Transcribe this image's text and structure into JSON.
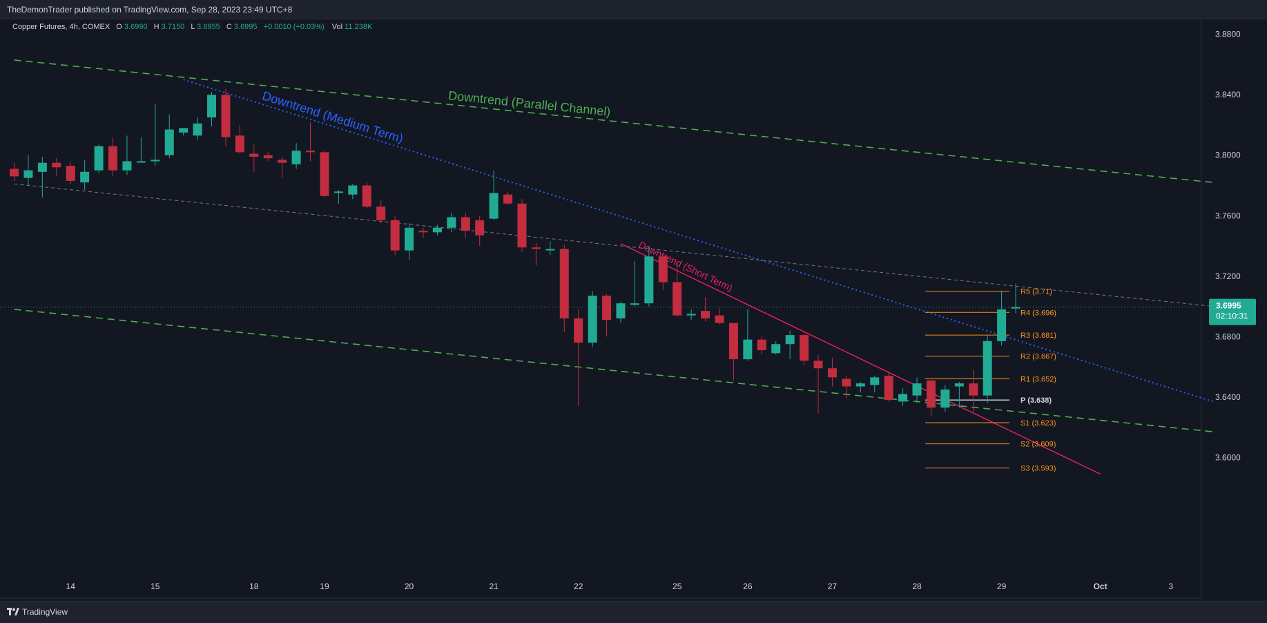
{
  "header": {
    "published": "TheDemonTrader published on TradingView.com, Sep 28, 2023 23:49 UTC+8"
  },
  "legend": {
    "symbol": "Copper Futures, 4h, COMEX",
    "o_label": "O",
    "o_value": "3.6990",
    "h_label": "H",
    "h_value": "3.7150",
    "l_label": "L",
    "l_value": "3.6955",
    "c_label": "C",
    "c_value": "3.6995",
    "change": "+0.0010 (+0.03%)",
    "vol_label": "Vol",
    "vol_value": "11.238K"
  },
  "price_badge": {
    "price": "3.6995",
    "countdown": "02:10:31"
  },
  "footer": {
    "brand": "TradingView"
  },
  "colors": {
    "background": "#131722",
    "panel": "#1e222d",
    "bull": "#22ab94",
    "bear": "#c22d3f",
    "pivot_levels": "#f7931a",
    "pivot_p": "#d1d4dc",
    "channel": "#4caf50",
    "medium_trend": "#2962ff",
    "short_trend": "#e91e63",
    "axis_text": "#d1d4dc"
  },
  "chart_data": {
    "type": "candlestick",
    "symbol": "Copper Futures, 4h, COMEX",
    "ylim": [
      3.585,
      3.885
    ],
    "xlim": [
      0,
      86
    ],
    "yticks": [
      "3.8800",
      "3.8400",
      "3.8000",
      "3.7600",
      "3.7200",
      "3.6800",
      "3.6400",
      "3.6000"
    ],
    "ytick_values": [
      3.88,
      3.84,
      3.8,
      3.76,
      3.72,
      3.68,
      3.64,
      3.6
    ],
    "xticks": [
      {
        "label": "14",
        "bar": 4,
        "bold": false
      },
      {
        "label": "15",
        "bar": 10,
        "bold": false
      },
      {
        "label": "18",
        "bar": 17,
        "bold": false
      },
      {
        "label": "19",
        "bar": 22,
        "bold": false
      },
      {
        "label": "20",
        "bar": 28,
        "bold": false
      },
      {
        "label": "21",
        "bar": 34,
        "bold": false
      },
      {
        "label": "22",
        "bar": 40,
        "bold": false
      },
      {
        "label": "25",
        "bar": 47,
        "bold": false
      },
      {
        "label": "26",
        "bar": 52,
        "bold": false
      },
      {
        "label": "27",
        "bar": 58,
        "bold": false
      },
      {
        "label": "28",
        "bar": 64,
        "bold": false
      },
      {
        "label": "29",
        "bar": 70,
        "bold": false
      },
      {
        "label": "Oct",
        "bar": 77,
        "bold": true
      },
      {
        "label": "3",
        "bar": 82,
        "bold": false
      }
    ],
    "candles": [
      {
        "o": 3.791,
        "h": 3.795,
        "l": 3.783,
        "c": 3.786
      },
      {
        "o": 3.785,
        "h": 3.8,
        "l": 3.78,
        "c": 3.79
      },
      {
        "o": 3.789,
        "h": 3.799,
        "l": 3.772,
        "c": 3.795
      },
      {
        "o": 3.795,
        "h": 3.798,
        "l": 3.786,
        "c": 3.792
      },
      {
        "o": 3.793,
        "h": 3.796,
        "l": 3.781,
        "c": 3.783
      },
      {
        "o": 3.782,
        "h": 3.797,
        "l": 3.777,
        "c": 3.789
      },
      {
        "o": 3.79,
        "h": 3.807,
        "l": 3.788,
        "c": 3.806
      },
      {
        "o": 3.806,
        "h": 3.812,
        "l": 3.786,
        "c": 3.79
      },
      {
        "o": 3.79,
        "h": 3.813,
        "l": 3.787,
        "c": 3.796
      },
      {
        "o": 3.796,
        "h": 3.812,
        "l": 3.795,
        "c": 3.796
      },
      {
        "o": 3.796,
        "h": 3.834,
        "l": 3.793,
        "c": 3.797
      },
      {
        "o": 3.8,
        "h": 3.827,
        "l": 3.798,
        "c": 3.817
      },
      {
        "o": 3.815,
        "h": 3.818,
        "l": 3.813,
        "c": 3.818
      },
      {
        "o": 3.813,
        "h": 3.825,
        "l": 3.81,
        "c": 3.821
      },
      {
        "o": 3.825,
        "h": 3.842,
        "l": 3.819,
        "c": 3.84
      },
      {
        "o": 3.84,
        "h": 3.844,
        "l": 3.806,
        "c": 3.812
      },
      {
        "o": 3.813,
        "h": 3.82,
        "l": 3.801,
        "c": 3.802
      },
      {
        "o": 3.801,
        "h": 3.807,
        "l": 3.789,
        "c": 3.799
      },
      {
        "o": 3.8,
        "h": 3.802,
        "l": 3.796,
        "c": 3.798
      },
      {
        "o": 3.797,
        "h": 3.799,
        "l": 3.785,
        "c": 3.795
      },
      {
        "o": 3.794,
        "h": 3.808,
        "l": 3.791,
        "c": 3.803
      },
      {
        "o": 3.803,
        "h": 3.822,
        "l": 3.796,
        "c": 3.802
      },
      {
        "o": 3.802,
        "h": 3.803,
        "l": 3.772,
        "c": 3.773
      },
      {
        "o": 3.776,
        "h": 3.777,
        "l": 3.768,
        "c": 3.776
      },
      {
        "o": 3.774,
        "h": 3.781,
        "l": 3.771,
        "c": 3.78
      },
      {
        "o": 3.78,
        "h": 3.782,
        "l": 3.765,
        "c": 3.766
      },
      {
        "o": 3.766,
        "h": 3.77,
        "l": 3.755,
        "c": 3.757
      },
      {
        "o": 3.757,
        "h": 3.76,
        "l": 3.734,
        "c": 3.737
      },
      {
        "o": 3.737,
        "h": 3.755,
        "l": 3.731,
        "c": 3.752
      },
      {
        "o": 3.75,
        "h": 3.752,
        "l": 3.745,
        "c": 3.749
      },
      {
        "o": 3.749,
        "h": 3.754,
        "l": 3.747,
        "c": 3.752
      },
      {
        "o": 3.752,
        "h": 3.762,
        "l": 3.749,
        "c": 3.759
      },
      {
        "o": 3.759,
        "h": 3.762,
        "l": 3.745,
        "c": 3.75
      },
      {
        "o": 3.757,
        "h": 3.76,
        "l": 3.74,
        "c": 3.747
      },
      {
        "o": 3.758,
        "h": 3.79,
        "l": 3.757,
        "c": 3.775
      },
      {
        "o": 3.774,
        "h": 3.776,
        "l": 3.767,
        "c": 3.768
      },
      {
        "o": 3.768,
        "h": 3.771,
        "l": 3.736,
        "c": 3.739
      },
      {
        "o": 3.739,
        "h": 3.742,
        "l": 3.727,
        "c": 3.738
      },
      {
        "o": 3.737,
        "h": 3.743,
        "l": 3.734,
        "c": 3.738
      },
      {
        "o": 3.738,
        "h": 3.741,
        "l": 3.683,
        "c": 3.692
      },
      {
        "o": 3.692,
        "h": 3.698,
        "l": 3.634,
        "c": 3.676
      },
      {
        "o": 3.676,
        "h": 3.71,
        "l": 3.673,
        "c": 3.707
      },
      {
        "o": 3.707,
        "h": 3.708,
        "l": 3.68,
        "c": 3.691
      },
      {
        "o": 3.692,
        "h": 3.703,
        "l": 3.689,
        "c": 3.702
      },
      {
        "o": 3.701,
        "h": 3.73,
        "l": 3.7,
        "c": 3.702
      },
      {
        "o": 3.702,
        "h": 3.74,
        "l": 3.7,
        "c": 3.733
      },
      {
        "o": 3.733,
        "h": 3.735,
        "l": 3.711,
        "c": 3.716
      },
      {
        "o": 3.716,
        "h": 3.729,
        "l": 3.693,
        "c": 3.694
      },
      {
        "o": 3.694,
        "h": 3.698,
        "l": 3.691,
        "c": 3.695
      },
      {
        "o": 3.697,
        "h": 3.706,
        "l": 3.69,
        "c": 3.692
      },
      {
        "o": 3.694,
        "h": 3.699,
        "l": 3.688,
        "c": 3.689
      },
      {
        "o": 3.689,
        "h": 3.689,
        "l": 3.651,
        "c": 3.665
      },
      {
        "o": 3.665,
        "h": 3.698,
        "l": 3.664,
        "c": 3.678
      },
      {
        "o": 3.678,
        "h": 3.68,
        "l": 3.668,
        "c": 3.671
      },
      {
        "o": 3.669,
        "h": 3.677,
        "l": 3.668,
        "c": 3.675
      },
      {
        "o": 3.675,
        "h": 3.684,
        "l": 3.665,
        "c": 3.681
      },
      {
        "o": 3.681,
        "h": 3.682,
        "l": 3.661,
        "c": 3.664
      },
      {
        "o": 3.664,
        "h": 3.668,
        "l": 3.629,
        "c": 3.659
      },
      {
        "o": 3.659,
        "h": 3.666,
        "l": 3.647,
        "c": 3.653
      },
      {
        "o": 3.652,
        "h": 3.654,
        "l": 3.639,
        "c": 3.647
      },
      {
        "o": 3.647,
        "h": 3.65,
        "l": 3.643,
        "c": 3.649
      },
      {
        "o": 3.648,
        "h": 3.654,
        "l": 3.643,
        "c": 3.653
      },
      {
        "o": 3.654,
        "h": 3.656,
        "l": 3.637,
        "c": 3.638
      },
      {
        "o": 3.637,
        "h": 3.646,
        "l": 3.634,
        "c": 3.642
      },
      {
        "o": 3.641,
        "h": 3.653,
        "l": 3.636,
        "c": 3.649
      },
      {
        "o": 3.651,
        "h": 3.652,
        "l": 3.627,
        "c": 3.633
      },
      {
        "o": 3.633,
        "h": 3.648,
        "l": 3.63,
        "c": 3.645
      },
      {
        "o": 3.647,
        "h": 3.65,
        "l": 3.633,
        "c": 3.649
      },
      {
        "o": 3.649,
        "h": 3.658,
        "l": 3.63,
        "c": 3.641
      },
      {
        "o": 3.641,
        "h": 3.681,
        "l": 3.636,
        "c": 3.677
      },
      {
        "o": 3.677,
        "h": 3.71,
        "l": 3.674,
        "c": 3.698
      },
      {
        "o": 3.699,
        "h": 3.715,
        "l": 3.6955,
        "c": 3.6995
      }
    ],
    "current_price": 3.6995,
    "pivot_points": [
      {
        "label": "R5 (3.71)",
        "value": 3.71
      },
      {
        "label": "R4 (3.696)",
        "value": 3.696
      },
      {
        "label": "R3 (3.681)",
        "value": 3.681
      },
      {
        "label": "R2 (3.667)",
        "value": 3.667
      },
      {
        "label": "R1 (3.652)",
        "value": 3.652
      },
      {
        "label": "P (3.638)",
        "value": 3.638
      },
      {
        "label": "S1 (3.623)",
        "value": 3.623
      },
      {
        "label": "S2 (3.609)",
        "value": 3.609
      },
      {
        "label": "S3 (3.593)",
        "value": 3.593
      }
    ],
    "trendlines": [
      {
        "name": "Downtrend (Parallel Channel)",
        "style": "dashed",
        "role": "upper",
        "x1": 0,
        "y1": 3.863,
        "x2": 85,
        "y2": 3.782
      },
      {
        "name": "",
        "style": "dashed",
        "role": "lower",
        "x1": 0,
        "y1": 3.698,
        "x2": 85,
        "y2": 3.617
      },
      {
        "name": "",
        "style": "mid-dashed",
        "role": "middle",
        "x1": 0,
        "y1": 3.781,
        "x2": 85,
        "y2": 3.7
      },
      {
        "name": "Downtrend (Medium Term)",
        "style": "dotted",
        "x1": 12,
        "y1": 3.85,
        "x2": 85,
        "y2": 3.637
      },
      {
        "name": "Downtrend (Short Term)",
        "style": "solid",
        "x1": 43,
        "y1": 3.7415,
        "x2": 77,
        "y2": 3.589
      }
    ]
  }
}
